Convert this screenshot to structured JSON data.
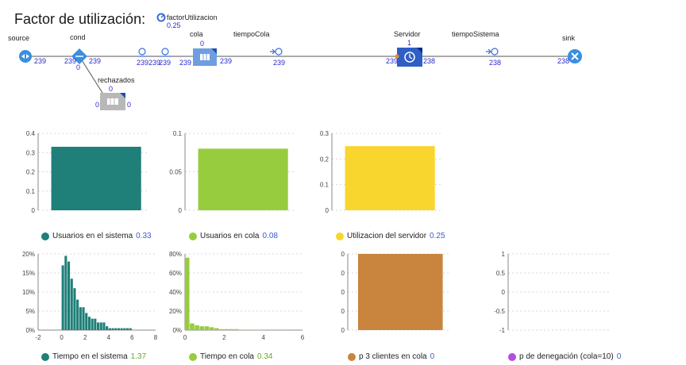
{
  "title": "Factor de utilización:",
  "param": {
    "name": "factorUtilizacion",
    "value": "0.25"
  },
  "flow": {
    "source": {
      "label": "source",
      "out": "239"
    },
    "cond": {
      "label": "cond",
      "in": "239",
      "out": "239",
      "below": "0"
    },
    "delay1": {
      "in": "239",
      "out": "239"
    },
    "delay2": {
      "in": "239",
      "out": "239"
    },
    "cola": {
      "label": "cola",
      "count": "0",
      "in": "239",
      "out": "239"
    },
    "tiempoCola": {
      "label": "tiempoCola",
      "in": "239"
    },
    "servidor": {
      "label": "Servidor",
      "count": "1",
      "in": "239",
      "out": "238"
    },
    "tiempoSistema": {
      "label": "tiempoSistema",
      "in": "238"
    },
    "sink": {
      "label": "sink",
      "in": "238"
    },
    "rechazados": {
      "label": "rechazados",
      "count": "0",
      "in": "0",
      "out": "0"
    }
  },
  "colors": {
    "teal": "#1f7f79",
    "green": "#97cc3f",
    "yellow": "#f9d62e",
    "orange": "#c9843d",
    "purple": "#b44ee0",
    "blue": "#2a2ad0"
  },
  "legends": [
    {
      "label": "Usuarios en el sistema",
      "value": "0.33",
      "color": "#1f7f79",
      "valueColor": "#3b5bd0"
    },
    {
      "label": "Usuarios en cola",
      "value": "0.08",
      "color": "#97cc3f",
      "valueColor": "#3b5bd0"
    },
    {
      "label": "Utilizacion del servidor",
      "value": "0.25",
      "color": "#f9d62e",
      "valueColor": "#3b5bd0"
    },
    {
      "label": "Tiempo en el sistema",
      "value": "1.37",
      "color": "#1f7f79",
      "valueColor": "#6aa82a"
    },
    {
      "label": "Tiempo en cola",
      "value": "0.34",
      "color": "#97cc3f",
      "valueColor": "#6aa82a"
    },
    {
      "label": "p 3 clientes en cola",
      "value": "0",
      "color": "#c9843d",
      "valueColor": "#3b5bd0"
    },
    {
      "label": "p de denegación (cola=10)",
      "value": "0",
      "color": "#b44ee0",
      "valueColor": "#3b5bd0"
    }
  ],
  "chart_data": [
    {
      "type": "bar",
      "series": [
        {
          "name": "Usuarios en el sistema",
          "values": [
            0.33
          ]
        }
      ],
      "yticks": [
        "0",
        "0.1",
        "0.2",
        "0.3",
        "0.4"
      ],
      "ylim": [
        0,
        0.4
      ],
      "color": "#1f7f79"
    },
    {
      "type": "bar",
      "series": [
        {
          "name": "Usuarios en cola",
          "values": [
            0.08
          ]
        }
      ],
      "yticks": [
        "0",
        "0.05",
        "0.1"
      ],
      "ylim": [
        0,
        0.1
      ],
      "color": "#97cc3f"
    },
    {
      "type": "bar",
      "series": [
        {
          "name": "Utilizacion del servidor",
          "values": [
            0.25
          ]
        }
      ],
      "yticks": [
        "0",
        "0.1",
        "0.2",
        "0.3"
      ],
      "ylim": [
        0,
        0.3
      ],
      "color": "#f9d62e"
    },
    {
      "type": "bar",
      "x_bins": [
        0,
        0.25,
        0.5,
        0.75,
        1,
        1.25,
        1.5,
        1.75,
        2,
        2.25,
        2.5,
        2.75,
        3,
        3.25,
        3.5,
        3.75,
        4,
        4.25,
        4.5,
        4.75,
        5,
        5.25,
        5.5,
        5.75
      ],
      "values": [
        17,
        19.5,
        18,
        13.5,
        11,
        8,
        6,
        6,
        4.5,
        3.5,
        3,
        3,
        2,
        2,
        2,
        1,
        0.5,
        0.5,
        0.5,
        0.5,
        0.5,
        0.5,
        0.5,
        0.5
      ],
      "yticks": [
        "0%",
        "5%",
        "10%",
        "15%",
        "20%"
      ],
      "ylim": [
        0,
        20
      ],
      "xticks": [
        "-2",
        "0",
        "2",
        "4",
        "6",
        "8"
      ],
      "xlim": [
        -2,
        8
      ],
      "color": "#1f7f79"
    },
    {
      "type": "bar",
      "x_bins": [
        0,
        0.25,
        0.5,
        0.75,
        1,
        1.25,
        1.5,
        1.75,
        2,
        2.25,
        2.5,
        2.75,
        3,
        3.25,
        3.5,
        3.75,
        4,
        4.25,
        4.5,
        4.75,
        5,
        5.25,
        5.5,
        5.75
      ],
      "values": [
        76,
        7,
        5,
        4,
        4,
        3,
        2,
        1,
        1,
        1,
        1,
        0.5,
        0.5,
        0.5,
        0.3,
        0.3,
        0.2,
        0.2,
        0.2,
        0.2,
        0.1,
        0.1,
        0.1,
        0.1
      ],
      "yticks": [
        "0%",
        "20%",
        "40%",
        "60%",
        "80%"
      ],
      "ylim": [
        0,
        80
      ],
      "xticks": [
        "0",
        "2",
        "4",
        "6"
      ],
      "xlim": [
        0,
        6
      ],
      "color": "#97cc3f"
    },
    {
      "type": "bar",
      "series": [
        {
          "name": "p 3 clientes en cola",
          "values": [
            0
          ]
        }
      ],
      "yticks": [
        "0",
        "0",
        "0",
        "0",
        "0"
      ],
      "color": "#c9843d"
    },
    {
      "type": "bar",
      "series": [
        {
          "name": "p de denegación (cola=10)",
          "values": [
            0
          ]
        }
      ],
      "yticks": [
        "-1",
        "-0.5",
        "0",
        "0.5",
        "1"
      ],
      "ylim": [
        -1,
        1
      ],
      "color": "#b44ee0"
    }
  ]
}
